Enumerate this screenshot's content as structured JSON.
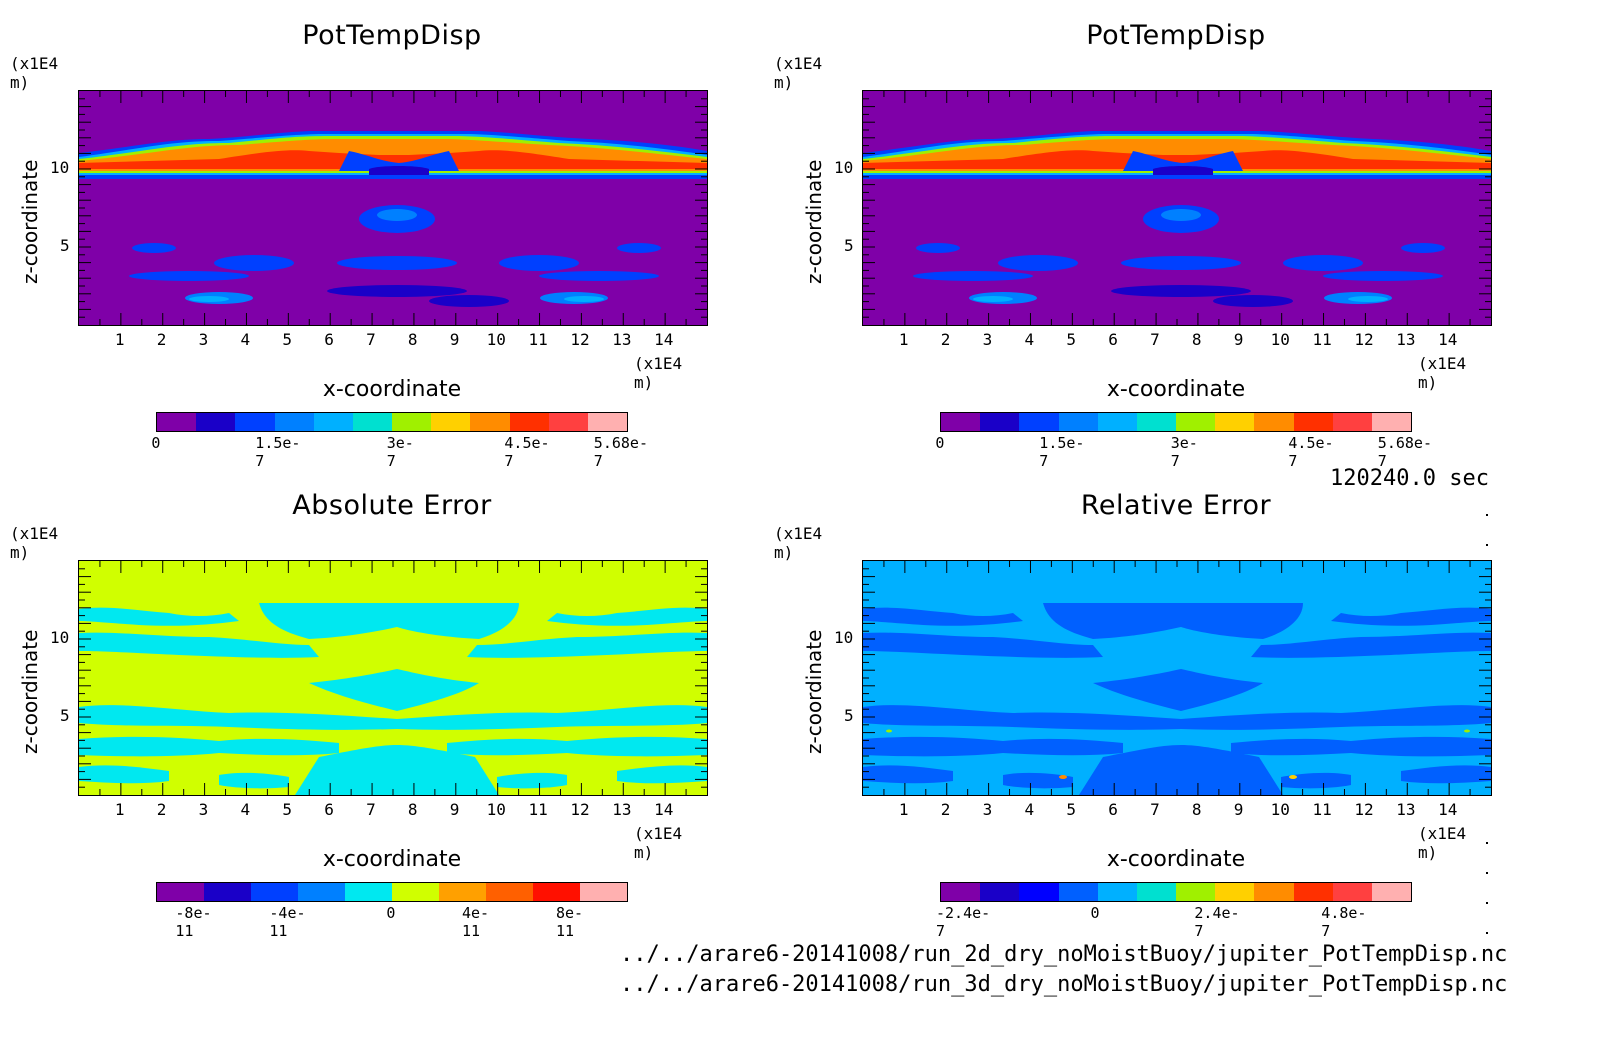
{
  "chart_data": [
    {
      "type": "heatmap",
      "title": "PotTempDisp",
      "xlabel": "x-coordinate",
      "ylabel": "z-coordinate",
      "x_unit": "(x1E4 m)",
      "y_unit": "(x1E4 m)",
      "xlim": [
        0,
        15
      ],
      "ylim": [
        0,
        15
      ],
      "xticks": [
        "1",
        "2",
        "3",
        "4",
        "5",
        "6",
        "7",
        "8",
        "9",
        "10",
        "11",
        "12",
        "13",
        "14"
      ],
      "yticks": [
        "5",
        "10"
      ],
      "colorbar": {
        "ticks": [
          "0",
          "1.5e-7",
          "3e-7",
          "4.5e-7",
          "5.68e-7"
        ],
        "colors": [
          "#7f00a8",
          "#1a00c8",
          "#0040ff",
          "#0080ff",
          "#00b0ff",
          "#00e0d0",
          "#a0f000",
          "#ffd000",
          "#ff8c00",
          "#ff3000",
          "#ff4040",
          "#ffb0b0"
        ]
      }
    },
    {
      "type": "heatmap",
      "title": "PotTempDisp",
      "xlabel": "x-coordinate",
      "ylabel": "z-coordinate",
      "x_unit": "(x1E4 m)",
      "y_unit": "(x1E4 m)",
      "xlim": [
        0,
        15
      ],
      "ylim": [
        0,
        15
      ],
      "xticks": [
        "1",
        "2",
        "3",
        "4",
        "5",
        "6",
        "7",
        "8",
        "9",
        "10",
        "11",
        "12",
        "13",
        "14"
      ],
      "yticks": [
        "5",
        "10"
      ],
      "colorbar": {
        "ticks": [
          "0",
          "1.5e-7",
          "3e-7",
          "4.5e-7",
          "5.68e-7"
        ],
        "colors": [
          "#7f00a8",
          "#1a00c8",
          "#0040ff",
          "#0080ff",
          "#00b0ff",
          "#00e0d0",
          "#a0f000",
          "#ffd000",
          "#ff8c00",
          "#ff3000",
          "#ff4040",
          "#ffb0b0"
        ]
      }
    },
    {
      "type": "heatmap",
      "title": "Absolute Error",
      "xlabel": "x-coordinate",
      "ylabel": "z-coordinate",
      "x_unit": "(x1E4 m)",
      "y_unit": "(x1E4 m)",
      "xlim": [
        0,
        15
      ],
      "ylim": [
        0,
        15
      ],
      "xticks": [
        "1",
        "2",
        "3",
        "4",
        "5",
        "6",
        "7",
        "8",
        "9",
        "10",
        "11",
        "12",
        "13",
        "14"
      ],
      "yticks": [
        "5",
        "10"
      ],
      "colorbar": {
        "ticks": [
          "-8e-11",
          "-4e-11",
          "0",
          "4e-11",
          "8e-11"
        ],
        "colors": [
          "#7f00a8",
          "#1a00c8",
          "#0040ff",
          "#0080ff",
          "#00e8f0",
          "#d0ff00",
          "#ffa000",
          "#ff6000",
          "#ff1000",
          "#ffb0b0"
        ]
      }
    },
    {
      "type": "heatmap",
      "title": "Relative Error",
      "xlabel": "x-coordinate",
      "ylabel": "z-coordinate",
      "x_unit": "(x1E4 m)",
      "y_unit": "(x1E4 m)",
      "xlim": [
        0,
        15
      ],
      "ylim": [
        0,
        15
      ],
      "xticks": [
        "1",
        "2",
        "3",
        "4",
        "5",
        "6",
        "7",
        "8",
        "9",
        "10",
        "11",
        "12",
        "13",
        "14"
      ],
      "yticks": [
        "5",
        "10"
      ],
      "colorbar": {
        "ticks": [
          "-2.4e-7",
          "0",
          "2.4e-7",
          "4.8e-7"
        ],
        "colors": [
          "#7f00a8",
          "#1a00c8",
          "#0000ff",
          "#0060ff",
          "#00b0ff",
          "#00e0d0",
          "#a0f000",
          "#ffd000",
          "#ff8c00",
          "#ff3000",
          "#ff4040",
          "#ffb0b0"
        ]
      }
    }
  ],
  "time_label": "120240.0 sec",
  "files": [
    "../../arare6-20141008/run_2d_dry_noMoistBuoy/jupiter_PotTempDisp.nc",
    "../../arare6-20141008/run_3d_dry_noMoistBuoy/jupiter_PotTempDisp.nc"
  ]
}
